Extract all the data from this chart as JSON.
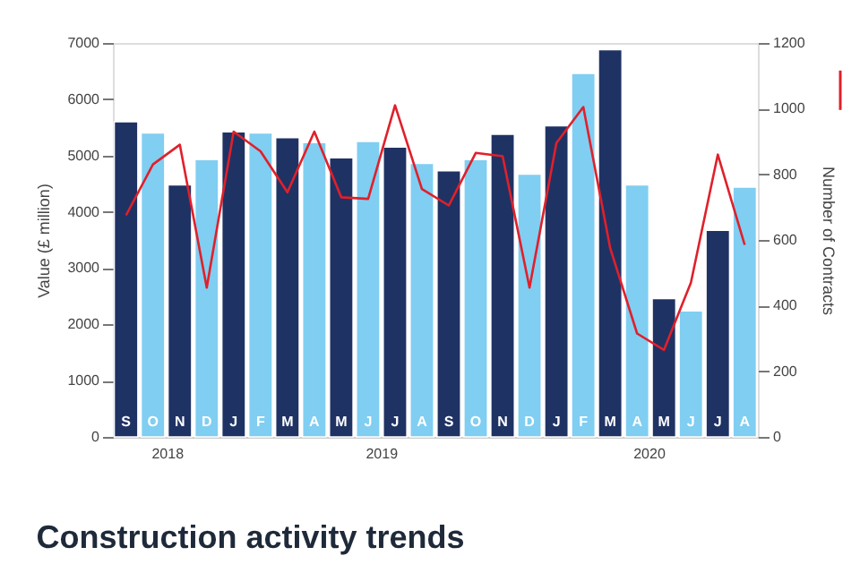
{
  "chart_data": {
    "type": "bar",
    "title": "Construction activity trends",
    "ylabel": "Value (£ million)",
    "y2label": "Number of Contracts",
    "categories": [
      "S",
      "O",
      "N",
      "D",
      "J",
      "F",
      "M",
      "A",
      "M",
      "J",
      "J",
      "A",
      "S",
      "O",
      "N",
      "D",
      "J",
      "F",
      "M",
      "A",
      "M",
      "J",
      "J",
      "A"
    ],
    "series": [
      {
        "colors": [
          "#1f3264",
          "#80cef2",
          "#1f3264",
          "#80cef2",
          "#1f3264",
          "#80cef2",
          "#1f3264",
          "#80cef2",
          "#1f3264",
          "#80cef2",
          "#1f3264",
          "#80cef2",
          "#1f3264",
          "#80cef2",
          "#1f3264",
          "#80cef2",
          "#1f3264",
          "#80cef2",
          "#1f3264",
          "#80cef2",
          "#1f3264",
          "#80cef2",
          "#1f3264",
          "#80cef2"
        ],
        "values": [
          5600,
          5400,
          4480,
          4930,
          5420,
          5400,
          5320,
          5230,
          4960,
          5250,
          5150,
          4860,
          4730,
          4930,
          5380,
          4670,
          5530,
          6460,
          6880,
          4480,
          2460,
          2240,
          3670,
          4440
        ]
      },
      {
        "type": "line",
        "axis": "y2",
        "color": "#e0202a",
        "values": [
          675,
          830,
          890,
          455,
          930,
          870,
          745,
          930,
          730,
          725,
          1010,
          755,
          705,
          865,
          855,
          455,
          895,
          1005,
          575,
          315,
          265,
          470,
          860,
          585
        ]
      }
    ],
    "ylim": [
      0,
      7000
    ],
    "yticks": [
      0,
      1000,
      2000,
      3000,
      4000,
      5000,
      6000,
      7000
    ],
    "y2lim": [
      0,
      1200
    ],
    "y2ticks": [
      0,
      200,
      400,
      600,
      800,
      1000,
      1200
    ],
    "annotations": [
      "2018",
      "2019",
      "2020"
    ],
    "grid": false
  }
}
